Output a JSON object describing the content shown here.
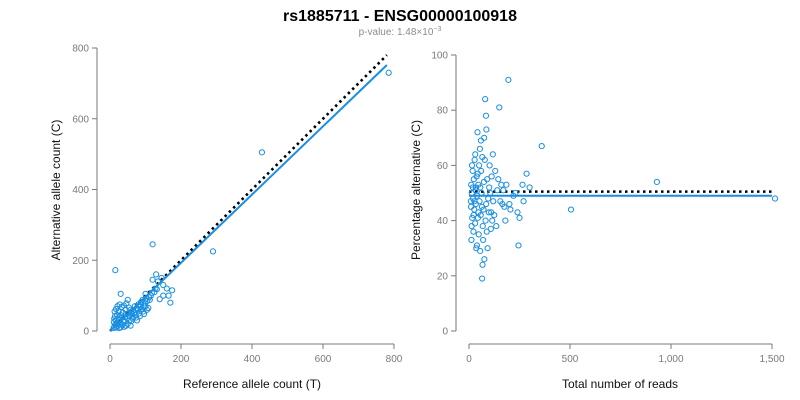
{
  "figure": {
    "title": "rs1885711 - ENSG00000100918",
    "subtitle_prefix": "p-value: 1.48×10",
    "subtitle_exponent": "−3"
  },
  "colors": {
    "points": "#1a8ee0",
    "fit_line": "#1a8ee0",
    "reference_line": "#000000"
  },
  "chart_data": [
    {
      "type": "scatter",
      "xlabel": "Reference allele count (T)",
      "ylabel": "Alternative allele count (C)",
      "xlim": [
        0,
        800
      ],
      "ylim": [
        0,
        800
      ],
      "xticks": [
        0,
        200,
        400,
        600,
        800
      ],
      "yticks": [
        0,
        200,
        400,
        600,
        800
      ],
      "xtick_labels": [
        "0",
        "200",
        "400",
        "600",
        "800"
      ],
      "ytick_labels": [
        "0",
        "200",
        "400",
        "600",
        "800"
      ],
      "fit_line": {
        "from": [
          0,
          0
        ],
        "to": [
          780,
          752
        ]
      },
      "reference_line": {
        "from": [
          0,
          0
        ],
        "to": [
          780,
          780
        ],
        "style": "dotted"
      },
      "points": [
        [
          785,
          730
        ],
        [
          428,
          505
        ],
        [
          290,
          225
        ],
        [
          120,
          245
        ],
        [
          15,
          172
        ],
        [
          175,
          115
        ],
        [
          145,
          150
        ],
        [
          160,
          120
        ],
        [
          130,
          160
        ],
        [
          120,
          145
        ],
        [
          100,
          105
        ],
        [
          30,
          105
        ],
        [
          50,
          88
        ],
        [
          170,
          80
        ],
        [
          165,
          100
        ],
        [
          135,
          140
        ],
        [
          150,
          130
        ],
        [
          95,
          70
        ],
        [
          75,
          65
        ],
        [
          60,
          55
        ],
        [
          45,
          48
        ],
        [
          35,
          38
        ],
        [
          25,
          30
        ],
        [
          20,
          22
        ],
        [
          15,
          18
        ],
        [
          12,
          12
        ],
        [
          18,
          10
        ],
        [
          10,
          8
        ],
        [
          22,
          14
        ],
        [
          28,
          26
        ],
        [
          32,
          20
        ],
        [
          38,
          30
        ],
        [
          42,
          40
        ],
        [
          48,
          36
        ],
        [
          52,
          50
        ],
        [
          55,
          42
        ],
        [
          58,
          60
        ],
        [
          62,
          48
        ],
        [
          65,
          58
        ],
        [
          68,
          52
        ],
        [
          70,
          70
        ],
        [
          72,
          45
        ],
        [
          78,
          60
        ],
        [
          80,
          75
        ],
        [
          85,
          68
        ],
        [
          88,
          82
        ],
        [
          90,
          62
        ],
        [
          92,
          88
        ],
        [
          98,
          78
        ],
        [
          102,
          92
        ],
        [
          105,
          85
        ],
        [
          110,
          95
        ],
        [
          112,
          88
        ],
        [
          115,
          100
        ],
        [
          118,
          108
        ],
        [
          125,
          110
        ],
        [
          128,
          120
        ],
        [
          132,
          118
        ],
        [
          40,
          25
        ],
        [
          44,
          60
        ],
        [
          36,
          52
        ],
        [
          30,
          45
        ],
        [
          26,
          40
        ],
        [
          24,
          55
        ],
        [
          20,
          45
        ],
        [
          16,
          30
        ],
        [
          14,
          42
        ],
        [
          12,
          35
        ],
        [
          11,
          25
        ],
        [
          13,
          55
        ],
        [
          17,
          62
        ],
        [
          21,
          70
        ],
        [
          27,
          75
        ],
        [
          33,
          68
        ],
        [
          39,
          72
        ],
        [
          46,
          78
        ],
        [
          54,
          66
        ],
        [
          66,
          40
        ],
        [
          74,
          38
        ],
        [
          82,
          50
        ],
        [
          86,
          58
        ],
        [
          94,
          55
        ],
        [
          100,
          70
        ],
        [
          108,
          65
        ],
        [
          55,
          30
        ],
        [
          60,
          28
        ],
        [
          64,
          35
        ],
        [
          50,
          20
        ],
        [
          45,
          15
        ],
        [
          40,
          12
        ],
        [
          35,
          18
        ],
        [
          30,
          10
        ],
        [
          25,
          8
        ],
        [
          58,
          15
        ],
        [
          76,
          30
        ],
        [
          84,
          42
        ],
        [
          96,
          48
        ],
        [
          104,
          60
        ],
        [
          140,
          90
        ],
        [
          150,
          100
        ]
      ]
    },
    {
      "type": "scatter",
      "xlabel": "Total number of reads",
      "ylabel": "Percentage alternative (C)",
      "xlim": [
        0,
        1500
      ],
      "ylim": [
        0,
        100
      ],
      "xticks": [
        0,
        500,
        1000,
        1500
      ],
      "yticks": [
        0,
        20,
        40,
        60,
        80,
        100
      ],
      "xtick_labels": [
        "0",
        "500",
        "1,000",
        "1,500"
      ],
      "ytick_labels": [
        "0",
        "20",
        "40",
        "60",
        "80",
        "100"
      ],
      "fit_line": {
        "from": [
          0,
          49
        ],
        "to": [
          1500,
          49
        ]
      },
      "reference_line": {
        "from": [
          0,
          50.5
        ],
        "to": [
          1500,
          50.5
        ],
        "style": "dotted"
      },
      "points": [
        [
          1515,
          48
        ],
        [
          930,
          54
        ],
        [
          505,
          44
        ],
        [
          360,
          67
        ],
        [
          300,
          52
        ],
        [
          285,
          57
        ],
        [
          265,
          53
        ],
        [
          250,
          41
        ],
        [
          245,
          31
        ],
        [
          220,
          49
        ],
        [
          205,
          44
        ],
        [
          195,
          91
        ],
        [
          185,
          53
        ],
        [
          175,
          45
        ],
        [
          165,
          46
        ],
        [
          160,
          53
        ],
        [
          150,
          81
        ],
        [
          140,
          51
        ],
        [
          130,
          58
        ],
        [
          120,
          47
        ],
        [
          115,
          40
        ],
        [
          110,
          43
        ],
        [
          105,
          50
        ],
        [
          100,
          52
        ],
        [
          95,
          48
        ],
        [
          90,
          55
        ],
        [
          85,
          46
        ],
        [
          80,
          84
        ],
        [
          78,
          62
        ],
        [
          75,
          70
        ],
        [
          72,
          44
        ],
        [
          70,
          33
        ],
        [
          68,
          38
        ],
        [
          65,
          19
        ],
        [
          62,
          50
        ],
        [
          60,
          58
        ],
        [
          58,
          42
        ],
        [
          55,
          29
        ],
        [
          52,
          47
        ],
        [
          50,
          60
        ],
        [
          48,
          35
        ],
        [
          46,
          53
        ],
        [
          44,
          41
        ],
        [
          42,
          72
        ],
        [
          40,
          49
        ],
        [
          38,
          56
        ],
        [
          36,
          30
        ],
        [
          34,
          46
        ],
        [
          32,
          51
        ],
        [
          30,
          39
        ],
        [
          28,
          62
        ],
        [
          26,
          44
        ],
        [
          24,
          55
        ],
        [
          22,
          36
        ],
        [
          20,
          48
        ],
        [
          18,
          58
        ],
        [
          16,
          41
        ],
        [
          14,
          50
        ],
        [
          12,
          33
        ],
        [
          10,
          45
        ],
        [
          88,
          36
        ],
        [
          82,
          40
        ],
        [
          76,
          26
        ],
        [
          74,
          54
        ],
        [
          66,
          63
        ],
        [
          64,
          45
        ],
        [
          56,
          52
        ],
        [
          54,
          66
        ],
        [
          47,
          43
        ],
        [
          43,
          57
        ],
        [
          39,
          31
        ],
        [
          35,
          52
        ],
        [
          31,
          64
        ],
        [
          27,
          47
        ],
        [
          23,
          42
        ],
        [
          19,
          52
        ],
        [
          15,
          60
        ],
        [
          13,
          38
        ],
        [
          11,
          53
        ],
        [
          9,
          47
        ],
        [
          92,
          30
        ],
        [
          98,
          43
        ],
        [
          102,
          60
        ],
        [
          108,
          37
        ],
        [
          112,
          56
        ],
        [
          118,
          64
        ],
        [
          125,
          42
        ],
        [
          135,
          38
        ],
        [
          145,
          55
        ],
        [
          155,
          47
        ],
        [
          170,
          51
        ],
        [
          180,
          40
        ],
        [
          200,
          46
        ],
        [
          230,
          50
        ],
        [
          240,
          43
        ],
        [
          270,
          47
        ],
        [
          86,
          73
        ],
        [
          84,
          78
        ],
        [
          67,
          24
        ],
        [
          59,
          69
        ]
      ]
    }
  ]
}
